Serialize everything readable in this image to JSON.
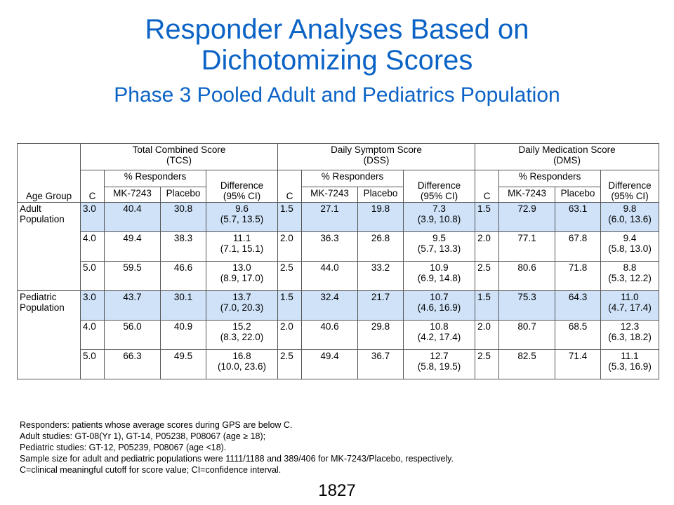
{
  "title": {
    "line1": "Responder Analyses Based on",
    "line2": "Dichotomizing Scores",
    "subtitle": "Phase 3 Pooled Adult and Pediatrics Population"
  },
  "table": {
    "age_group_header": "Age Group",
    "groups": [
      {
        "name_line1": "Total Combined Score",
        "name_line2": "(TCS)"
      },
      {
        "name_line1": "Daily Symptom Score",
        "name_line2": "(DSS)"
      },
      {
        "name_line1": "Daily Medication Score",
        "name_line2": "(DMS)"
      }
    ],
    "col_c": "C",
    "col_responders": "% Responders",
    "col_difference_line1": "Difference",
    "col_difference_line2": "(95% CI)",
    "col_mk": "MK-7243",
    "col_placebo": "Placebo",
    "populations": [
      {
        "label_line1": "Adult",
        "label_line2": "Population",
        "rows": [
          {
            "tcs": {
              "c": "3.0",
              "mk": "40.4",
              "pl": "30.8",
              "d": "9.6",
              "ci": "(5.7, 13.5)"
            },
            "dss": {
              "c": "1.5",
              "mk": "27.1",
              "pl": "19.8",
              "d": "7.3",
              "ci": "(3.9, 10.8)"
            },
            "dms": {
              "c": "1.5",
              "mk": "72.9",
              "pl": "63.1",
              "d": "9.8",
              "ci": "(6.0, 13.6)"
            }
          },
          {
            "tcs": {
              "c": "4.0",
              "mk": "49.4",
              "pl": "38.3",
              "d": "11.1",
              "ci": "(7.1, 15.1)"
            },
            "dss": {
              "c": "2.0",
              "mk": "36.3",
              "pl": "26.8",
              "d": "9.5",
              "ci": "(5.7, 13.3)"
            },
            "dms": {
              "c": "2.0",
              "mk": "77.1",
              "pl": "67.8",
              "d": "9.4",
              "ci": "(5.8, 13.0)"
            }
          },
          {
            "tcs": {
              "c": "5.0",
              "mk": "59.5",
              "pl": "46.6",
              "d": "13.0",
              "ci": "(8.9, 17.0)"
            },
            "dss": {
              "c": "2.5",
              "mk": "44.0",
              "pl": "33.2",
              "d": "10.9",
              "ci": "(6.9, 14.8)"
            },
            "dms": {
              "c": "2.5",
              "mk": "80.6",
              "pl": "71.8",
              "d": "8.8",
              "ci": "(5.3, 12.2)"
            }
          }
        ]
      },
      {
        "label_line1": "Pediatric",
        "label_line2": "Population",
        "rows": [
          {
            "tcs": {
              "c": "3.0",
              "mk": "43.7",
              "pl": "30.1",
              "d": "13.7",
              "ci": "(7.0, 20.3)"
            },
            "dss": {
              "c": "1.5",
              "mk": "32.4",
              "pl": "21.7",
              "d": "10.7",
              "ci": "(4.6, 16.9)"
            },
            "dms": {
              "c": "1.5",
              "mk": "75.3",
              "pl": "64.3",
              "d": "11.0",
              "ci": "(4.7, 17.4)"
            }
          },
          {
            "tcs": {
              "c": "4.0",
              "mk": "56.0",
              "pl": "40.9",
              "d": "15.2",
              "ci": "(8.3, 22.0)"
            },
            "dss": {
              "c": "2.0",
              "mk": "40.6",
              "pl": "29.8",
              "d": "10.8",
              "ci": "(4.2, 17.4)"
            },
            "dms": {
              "c": "2.0",
              "mk": "80.7",
              "pl": "68.5",
              "d": "12.3",
              "ci": "(6.3, 18.2)"
            }
          },
          {
            "tcs": {
              "c": "5.0",
              "mk": "66.3",
              "pl": "49.5",
              "d": "16.8",
              "ci": "(10.0, 23.6)"
            },
            "dss": {
              "c": "2.5",
              "mk": "49.4",
              "pl": "36.7",
              "d": "12.7",
              "ci": "(5.8, 19.5)"
            },
            "dms": {
              "c": "2.5",
              "mk": "82.5",
              "pl": "71.4",
              "d": "11.1",
              "ci": "(5.3, 16.9)"
            }
          }
        ]
      }
    ]
  },
  "footnotes": [
    "Responders: patients whose average scores during GPS are below C.",
    "Adult studies: GT-08(Yr  1), GT-14, P05238, P08067 (age ≥ 18);",
    "Pediatric studies: GT-12, P05239, P08067 (age <18).",
    "Sample size for adult and  pediatric populations were 1111/1188 and 389/406 for MK-7243/Placebo, respectively.",
    "C=clinical meaningful cutoff for score value; CI=confidence interval."
  ],
  "page_number": "1827",
  "colors": {
    "title": "#0b63c6",
    "highlight_row": "#cfe2f8",
    "header_rule": "#2a5fb0"
  }
}
